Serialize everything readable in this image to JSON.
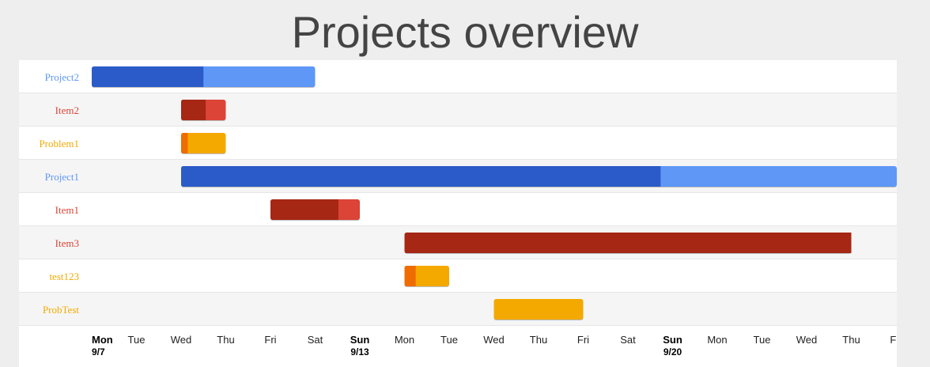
{
  "title": "Projects overview",
  "colors": {
    "project": "#2b5bc8",
    "project_rest": "#5e97f6",
    "project_label": "#5e97f6",
    "item": "#a52714",
    "item_rest": "#db4437",
    "item_label": "#db4437",
    "problem": "#ef6c00",
    "problem_rest": "#f4a900",
    "problem_label": "#f4a900",
    "row_alt": "#f5f5f5",
    "row": "#ffffff"
  },
  "chart_data": {
    "type": "gantt",
    "x_start": "2015-09-07",
    "x_end": "2015-09-25",
    "rows": [
      {
        "name": "Project2",
        "kind": "project",
        "start": "2015-09-07",
        "end": "2015-09-12",
        "percent_complete": 50
      },
      {
        "name": "Item2",
        "kind": "item",
        "start": "2015-09-09",
        "end": "2015-09-10",
        "percent_complete": 55
      },
      {
        "name": "Problem1",
        "kind": "problem",
        "start": "2015-09-09",
        "end": "2015-09-10",
        "percent_complete": 15
      },
      {
        "name": "Project1",
        "kind": "project",
        "start": "2015-09-09",
        "end": "2015-09-27",
        "percent_complete": 67
      },
      {
        "name": "Item1",
        "kind": "item",
        "start": "2015-09-11",
        "end": "2015-09-13",
        "percent_complete": 76
      },
      {
        "name": "Item3",
        "kind": "item",
        "start": "2015-09-14",
        "end": "2015-09-24",
        "percent_complete": 100
      },
      {
        "name": "test123",
        "kind": "problem",
        "start": "2015-09-14",
        "end": "2015-09-15",
        "percent_complete": 25
      },
      {
        "name": "ProbTest",
        "kind": "problem",
        "start": "2015-09-16",
        "end": "2015-09-18",
        "percent_complete": 0
      }
    ],
    "ticks": [
      {
        "day": "Mon",
        "date": "9/7",
        "bold": true
      },
      {
        "day": "Tue"
      },
      {
        "day": "Wed"
      },
      {
        "day": "Thu"
      },
      {
        "day": "Fri"
      },
      {
        "day": "Sat"
      },
      {
        "day": "Sun",
        "date": "9/13",
        "bold": true
      },
      {
        "day": "Mon"
      },
      {
        "day": "Tue"
      },
      {
        "day": "Wed"
      },
      {
        "day": "Thu"
      },
      {
        "day": "Fri"
      },
      {
        "day": "Sat"
      },
      {
        "day": "Sun",
        "date": "9/20",
        "bold": true
      },
      {
        "day": "Mon"
      },
      {
        "day": "Tue"
      },
      {
        "day": "Wed"
      },
      {
        "day": "Thu"
      },
      {
        "day": "Fri"
      }
    ]
  }
}
